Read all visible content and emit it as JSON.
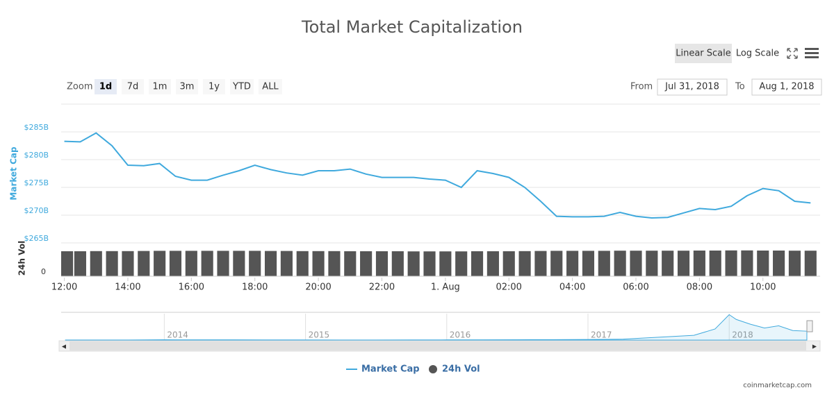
{
  "title": "Total Market Capitalization",
  "controls": {
    "zoom_label": "Zoom",
    "zoom_buttons": [
      "1d",
      "7d",
      "1m",
      "3m",
      "1y",
      "YTD",
      "ALL"
    ],
    "active_zoom": "1d",
    "from_label": "From",
    "from": "Jul 31, 2018",
    "to_label": "To",
    "to": "Aug 1, 2018",
    "scale_buttons": [
      "Linear Scale",
      "Log Scale"
    ],
    "active_scale": "Linear Scale"
  },
  "credit": "coinmarketcap.com",
  "chart_data": [
    {
      "type": "line",
      "ylabel": "Market Cap",
      "x": [
        0,
        0.5,
        1,
        1.5,
        2,
        2.5,
        3,
        3.5,
        4,
        4.5,
        5,
        5.5,
        6,
        6.5,
        7,
        7.5,
        8,
        8.5,
        9,
        9.5,
        10,
        10.5,
        11,
        11.5,
        12,
        12.5,
        13,
        13.5,
        14,
        14.5,
        15,
        15.5,
        16,
        16.5,
        17,
        17.5,
        18,
        18.5,
        19,
        19.5,
        20,
        20.5,
        21,
        21.5,
        22,
        22.5,
        23,
        23.5
      ],
      "series": [
        {
          "name": "Market Cap",
          "color": "#3fa9dd",
          "values": [
            283.3,
            283.2,
            284.8,
            282.5,
            279.0,
            278.9,
            279.3,
            277.0,
            276.3,
            276.3,
            277.2,
            278.0,
            279.0,
            278.2,
            277.6,
            277.2,
            278.0,
            278.0,
            278.3,
            277.4,
            276.8,
            276.8,
            276.8,
            276.5,
            276.3,
            275.0,
            278.0,
            277.5,
            276.8,
            275.0,
            272.5,
            269.8,
            269.7,
            269.7,
            269.8,
            270.5,
            269.8,
            269.5,
            269.6,
            270.4,
            271.2,
            271.0,
            271.6,
            273.5,
            274.8,
            274.4,
            272.5,
            272.2
          ]
        }
      ],
      "xlim": [
        -0.1,
        23.8
      ],
      "xticks": [
        {
          "value": 0,
          "label": "12:00"
        },
        {
          "value": 2,
          "label": "14:00"
        },
        {
          "value": 4,
          "label": "16:00"
        },
        {
          "value": 6,
          "label": "18:00"
        },
        {
          "value": 8,
          "label": "20:00"
        },
        {
          "value": 10,
          "label": "22:00"
        },
        {
          "value": 12,
          "label": "1. Aug"
        },
        {
          "value": 14,
          "label": "02:00"
        },
        {
          "value": 16,
          "label": "04:00"
        },
        {
          "value": 18,
          "label": "06:00"
        },
        {
          "value": 20,
          "label": "08:00"
        },
        {
          "value": 22,
          "label": "10:00"
        }
      ],
      "ylim": [
        265,
        290
      ],
      "yticks": [
        {
          "value": 265,
          "label": "$265B"
        },
        {
          "value": 270,
          "label": "$270B"
        },
        {
          "value": 275,
          "label": "$275B"
        },
        {
          "value": 280,
          "label": "$280B"
        },
        {
          "value": 285,
          "label": "$285B"
        }
      ],
      "grid": true
    },
    {
      "type": "bar",
      "ylabel": "24h Vol",
      "x": [
        0,
        0.5,
        1,
        1.5,
        2,
        2.5,
        3,
        3.5,
        4,
        4.5,
        5,
        5.5,
        6,
        6.5,
        7,
        7.5,
        8,
        8.5,
        9,
        9.5,
        10,
        10.5,
        11,
        11.5,
        12,
        12.5,
        13,
        13.5,
        14,
        14.5,
        15,
        15.5,
        16,
        16.5,
        17,
        17.5,
        18,
        18.5,
        19,
        19.5,
        20,
        20.5,
        21,
        21.5,
        22,
        22.5,
        23,
        23.5
      ],
      "series": [
        {
          "name": "24h Vol",
          "color": "#555555",
          "values": [
            18,
            18,
            18.1,
            18.1,
            18.1,
            18.2,
            18.3,
            18.3,
            18.3,
            18.3,
            18.3,
            18.3,
            18.3,
            18.2,
            18.2,
            18.1,
            18.1,
            18.1,
            18,
            18,
            18,
            18,
            17.9,
            17.9,
            17.9,
            17.9,
            18,
            18,
            18,
            18.1,
            18.2,
            18.3,
            18.3,
            18.3,
            18.3,
            18.4,
            18.4,
            18.4,
            18.4,
            18.4,
            18.5,
            18.5,
            18.6,
            18.6,
            18.5,
            18.5,
            18.4,
            18.4
          ]
        }
      ],
      "ylim": [
        0,
        20
      ],
      "yticks": [
        0
      ]
    },
    {
      "type": "area",
      "color": "#3fa9dd",
      "x": [
        2013.3,
        2013.5,
        2013.75,
        2014,
        2014.25,
        2014.5,
        2014.75,
        2015,
        2015.25,
        2015.5,
        2015.75,
        2016,
        2016.25,
        2016.5,
        2016.75,
        2017,
        2017.25,
        2017.5,
        2017.75,
        2017.9,
        2018,
        2018.05,
        2018.15,
        2018.25,
        2018.35,
        2018.45,
        2018.55
      ],
      "values": [
        2,
        2,
        4,
        10,
        8,
        8,
        6,
        5,
        4,
        4,
        5,
        7,
        9,
        12,
        13,
        18,
        30,
        90,
        150,
        350,
        800,
        650,
        500,
        380,
        450,
        300,
        280
      ],
      "xlim": [
        2013.26,
        2018.56
      ],
      "xticks": [
        2014,
        2015,
        2016,
        2017,
        2018
      ],
      "ylim": [
        0,
        830
      ]
    }
  ]
}
